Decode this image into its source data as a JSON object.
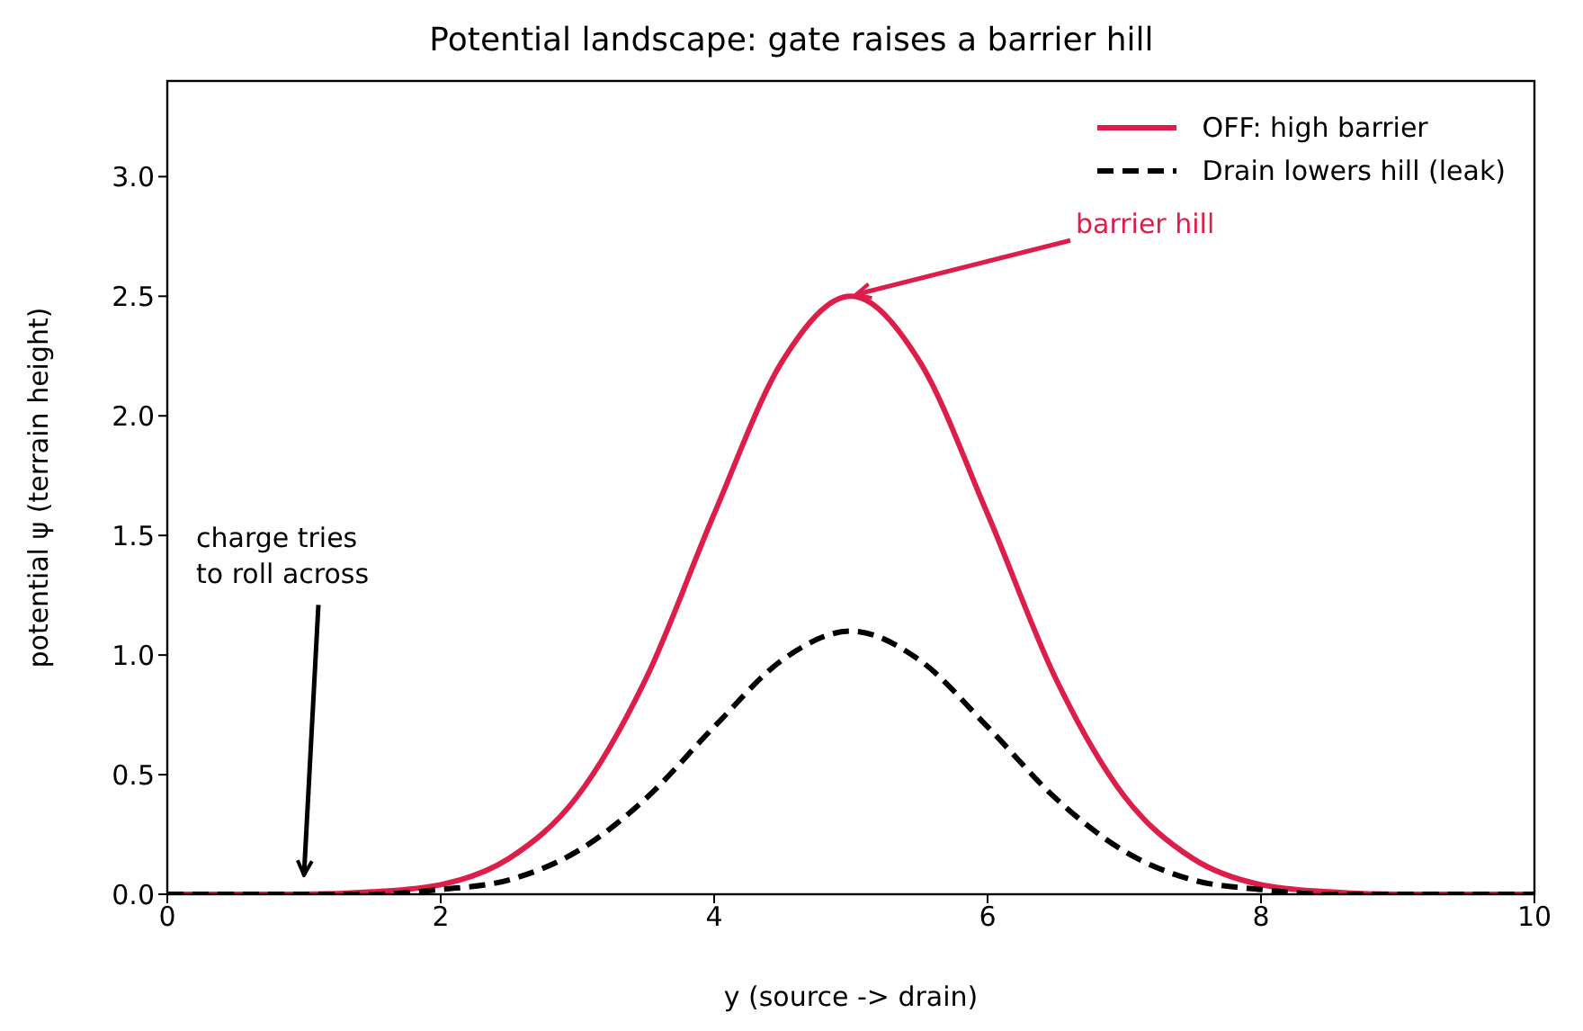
{
  "chart_data": {
    "type": "line",
    "title": "Potential landscape: gate raises a barrier hill",
    "xlabel": "y  (source  ->  drain)",
    "ylabel": "potential  ψ  (terrain height)",
    "x": [
      0,
      0.5,
      1,
      1.5,
      2,
      2.5,
      3,
      3.5,
      4,
      4.5,
      5,
      5.5,
      6,
      6.5,
      7,
      7.5,
      8,
      8.5,
      9,
      9.5,
      10
    ],
    "series": [
      {
        "name": "OFF: high barrier",
        "color": "#dc1e4a",
        "line_style": "solid",
        "values": [
          0,
          0,
          0,
          0.01,
          0.04,
          0.15,
          0.41,
          0.9,
          1.59,
          2.23,
          2.5,
          2.23,
          1.59,
          0.9,
          0.41,
          0.15,
          0.04,
          0.01,
          0,
          0,
          0
        ]
      },
      {
        "name": "Drain lowers hill (leak)",
        "color": "#000000",
        "line_style": "dashed",
        "values": [
          0,
          0,
          0,
          0,
          0.02,
          0.06,
          0.18,
          0.4,
          0.7,
          0.98,
          1.1,
          0.98,
          0.7,
          0.4,
          0.18,
          0.06,
          0.02,
          0,
          0,
          0,
          0
        ]
      }
    ],
    "annotations": [
      {
        "text": "barrier hill",
        "x": 5,
        "y": 2.5
      },
      "charge tries\nto roll across"
    ],
    "xlim": [
      0,
      10
    ],
    "xticks": [
      0,
      2,
      4,
      6,
      8,
      10
    ],
    "ylim": [
      0,
      3.4
    ],
    "yticks": [
      {
        "value": 0,
        "label": "0.0"
      },
      {
        "value": 0.5,
        "label": "0.5"
      },
      {
        "value": 1,
        "label": "1.0"
      },
      {
        "value": 1.5,
        "label": "1.5"
      },
      {
        "value": 2,
        "label": "2.0"
      },
      {
        "value": 2.5,
        "label": "2.5"
      },
      {
        "value": 3,
        "label": "3.0"
      }
    ],
    "grid": false,
    "legend": "top right",
    "marker": "none"
  }
}
